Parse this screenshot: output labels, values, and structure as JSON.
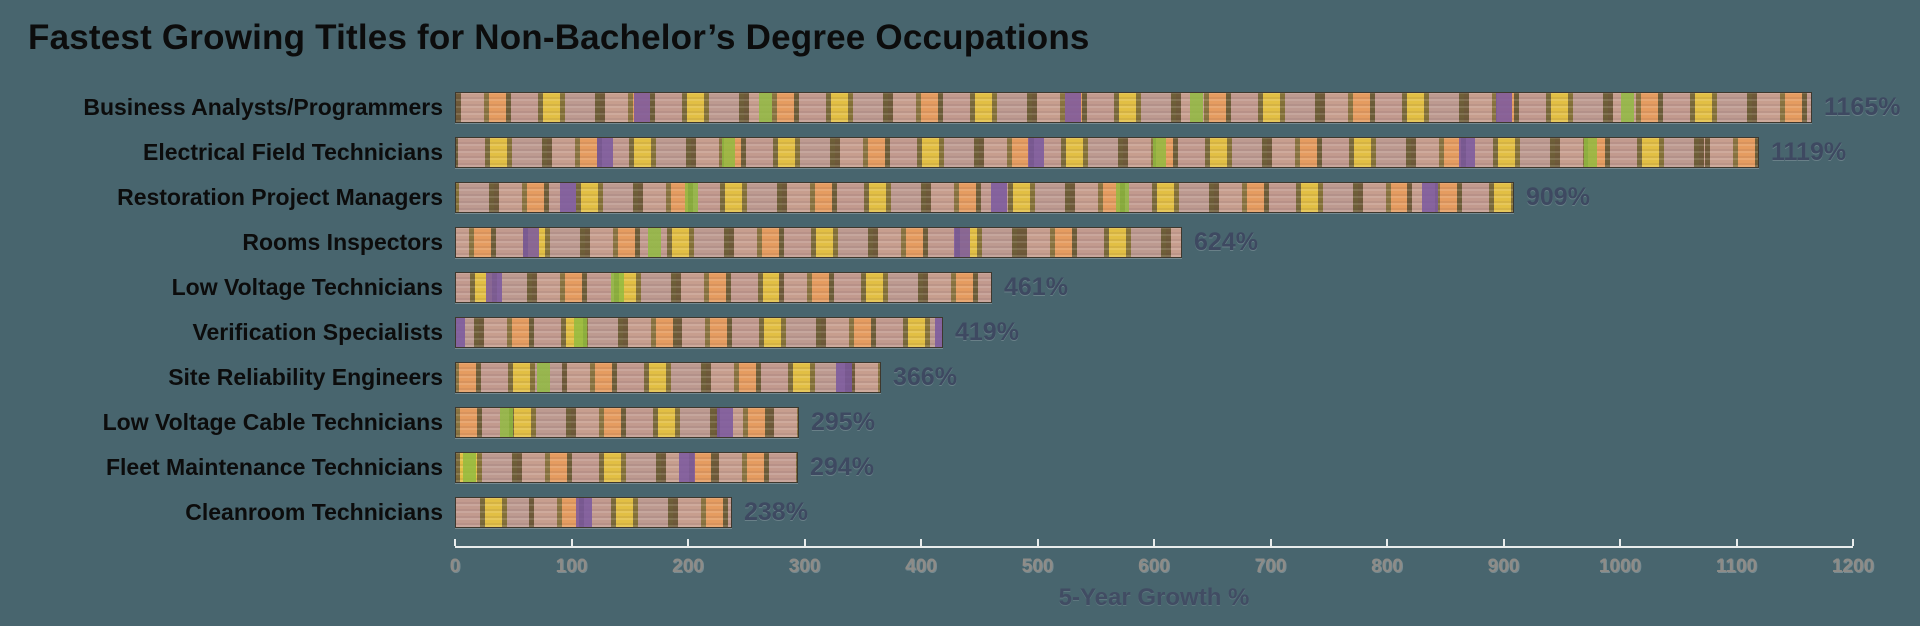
{
  "title": "Fastest Growing Titles for Non-Bachelor’s Degree Occupations",
  "chart_data": {
    "type": "bar",
    "orientation": "horizontal",
    "title": "Fastest Growing Titles for Non-Bachelor’s Degree Occupations",
    "categories": [
      "Business Analysts/Programmers",
      "Electrical Field Technicians",
      "Restoration Project Managers",
      "Rooms Inspectors",
      "Low Voltage Technicians",
      "Verification Specialists",
      "Site Reliability Engineers",
      "Low Voltage Cable Technicians",
      "Fleet Maintenance Technicians",
      "Cleanroom Technicians"
    ],
    "values": [
      1165,
      1119,
      909,
      624,
      461,
      419,
      366,
      295,
      294,
      238
    ],
    "value_labels": [
      "1165%",
      "1119%",
      "909%",
      "624%",
      "461%",
      "419%",
      "366%",
      "295%",
      "294%",
      "238%"
    ],
    "xlabel": "5-Year Growth %",
    "ylabel": "",
    "xlim": [
      0,
      1200
    ],
    "x_ticks": [
      0,
      100,
      200,
      300,
      400,
      500,
      600,
      700,
      800,
      900,
      1000,
      1100,
      1200
    ],
    "x_tick_labels": [
      "0",
      "100",
      "200",
      "300",
      "400",
      "500",
      "600",
      "700",
      "800",
      "900",
      "1000",
      "1100",
      "1200"
    ],
    "grid": false,
    "legend": false,
    "colors": {
      "background": "#48656e",
      "title_text": "#0c0c0c",
      "category_label": "#0c0c0c",
      "value_label": "#3e4961",
      "tick_label": "#8e8c88",
      "axis_line": "#e8ecec",
      "axis_title": "#414c63",
      "bar_base": "#c49a8c"
    }
  }
}
